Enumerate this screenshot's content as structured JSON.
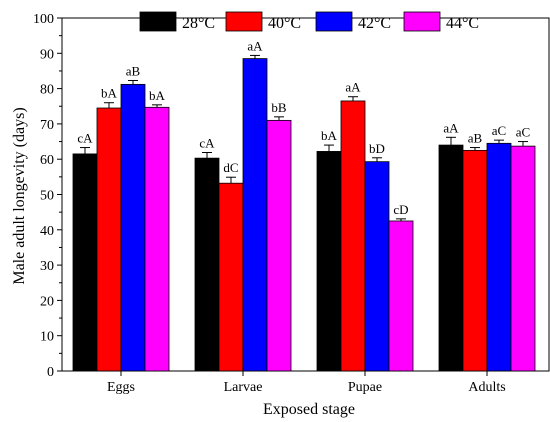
{
  "chart_data": {
    "type": "bar",
    "xlabel": "Exposed stage",
    "ylabel": "Male adult longevity (days)",
    "ylim": [
      0,
      100
    ],
    "yticks": [
      0,
      10,
      20,
      30,
      40,
      50,
      60,
      70,
      80,
      90,
      100
    ],
    "categories": [
      "Eggs",
      "Larvae",
      "Pupae",
      "Adults"
    ],
    "legend_position": "top",
    "series": [
      {
        "name": "28°C",
        "color": "#000000",
        "values": [
          61.5,
          60.3,
          62.2,
          64.0
        ],
        "errors": [
          1.8,
          1.6,
          1.8,
          2.2
        ],
        "labels": [
          "cA",
          "cA",
          "bA",
          "aA"
        ]
      },
      {
        "name": "40°C",
        "color": "#ff0000",
        "values": [
          74.5,
          53.2,
          76.5,
          62.5
        ],
        "errors": [
          1.5,
          1.7,
          1.2,
          0.8
        ],
        "labels": [
          "bA",
          "dC",
          "aA",
          "aB"
        ]
      },
      {
        "name": "42°C",
        "color": "#0000ff",
        "values": [
          81.2,
          88.5,
          59.3,
          64.5
        ],
        "errors": [
          1.1,
          0.9,
          1.1,
          0.9
        ],
        "labels": [
          "aB",
          "aA",
          "bD",
          "aC"
        ]
      },
      {
        "name": "44°C",
        "color": "#ff00ff",
        "values": [
          74.7,
          71.0,
          42.5,
          63.7
        ],
        "errors": [
          0.7,
          1.0,
          0.6,
          1.3
        ],
        "labels": [
          "bA",
          "bB",
          "cD",
          "aC"
        ]
      }
    ]
  }
}
